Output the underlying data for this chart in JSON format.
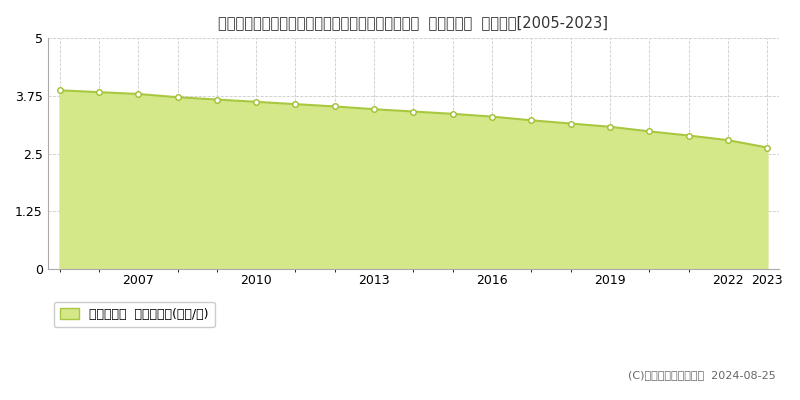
{
  "title": "福井県三方上中郡若狭町熊川２１号上ノ段１０番外  基準地価格  地価推移[2005-2023]",
  "years": [
    2005,
    2006,
    2007,
    2008,
    2009,
    2010,
    2011,
    2012,
    2013,
    2014,
    2015,
    2016,
    2017,
    2018,
    2019,
    2020,
    2021,
    2022,
    2023
  ],
  "values": [
    3.87,
    3.83,
    3.79,
    3.72,
    3.67,
    3.62,
    3.57,
    3.52,
    3.46,
    3.41,
    3.36,
    3.3,
    3.22,
    3.15,
    3.08,
    2.98,
    2.89,
    2.79,
    2.63
  ],
  "line_color": "#a8c840",
  "fill_color": "#d4e88a",
  "fill_alpha": 1.0,
  "marker_color": "white",
  "marker_edge_color": "#a0c030",
  "marker_size": 4,
  "ylim": [
    0,
    5
  ],
  "yticks": [
    0,
    1.25,
    2.5,
    3.75,
    5
  ],
  "xtick_positions": [
    2007,
    2010,
    2013,
    2016,
    2019,
    2022,
    2023
  ],
  "grid_color": "#cccccc",
  "bg_color": "#ffffff",
  "legend_label": "基準地価格  平均坪単価(万円/坪)",
  "copyright_text": "(C)土地価格ドットコム  2024-08-25",
  "title_fontsize": 10.5,
  "tick_fontsize": 9,
  "legend_fontsize": 9,
  "copyright_fontsize": 8
}
